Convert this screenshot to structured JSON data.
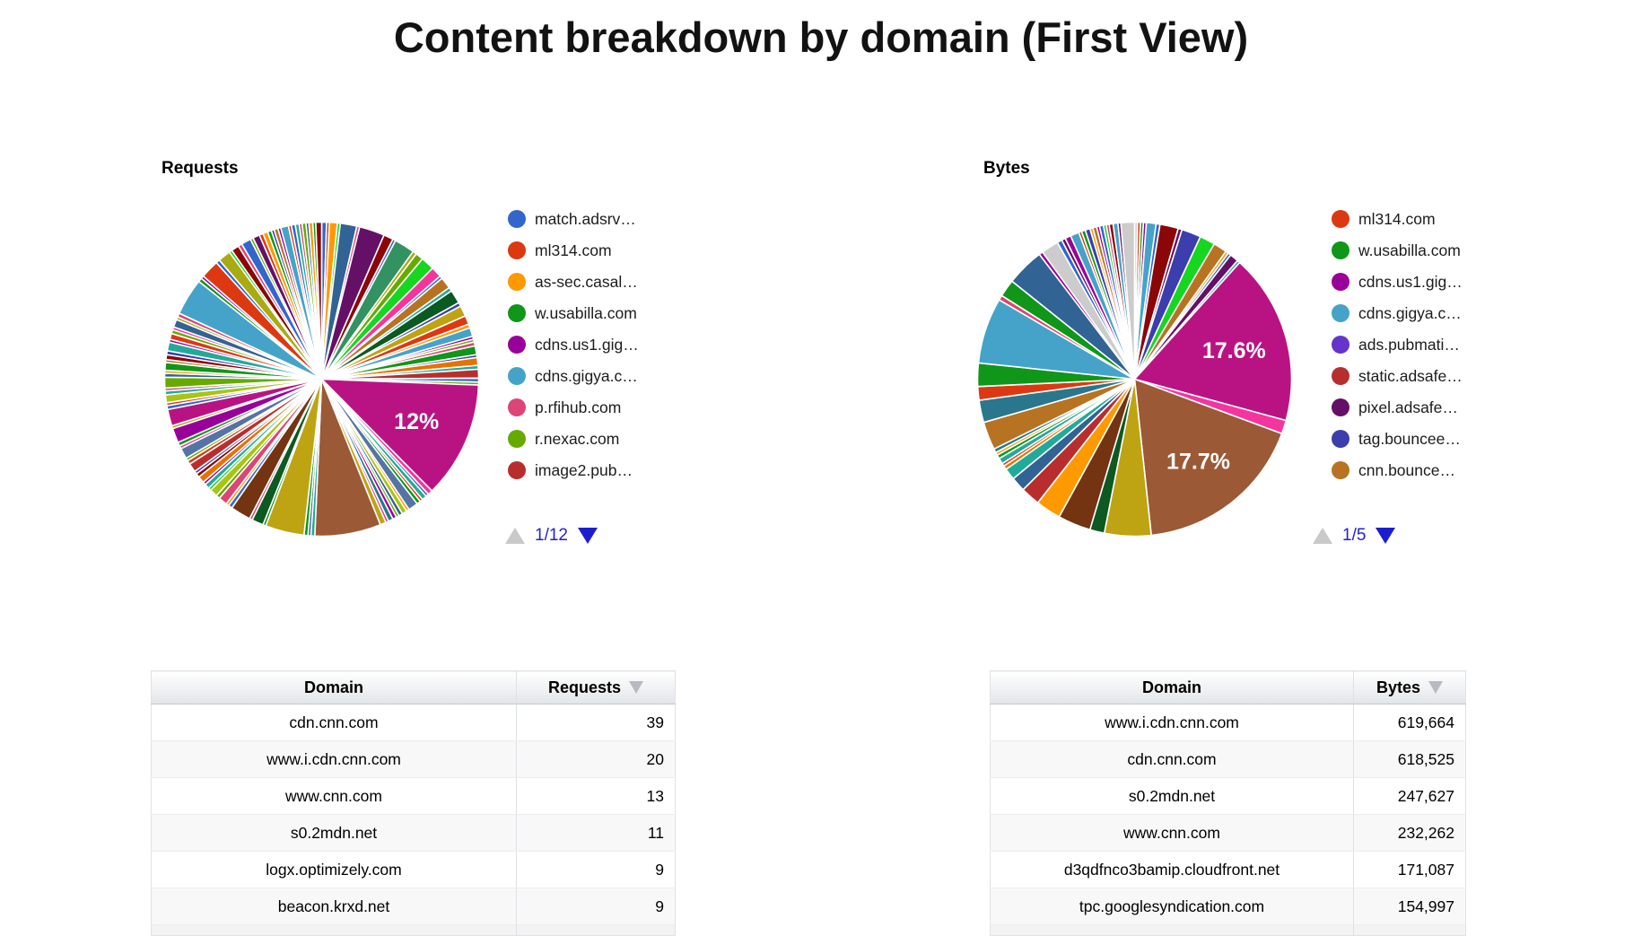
{
  "page": {
    "title": "Content breakdown by domain (First View)"
  },
  "chart_data": [
    {
      "type": "pie",
      "title": "Requests",
      "pager": "1/12",
      "labeled_slices": [
        {
          "label": "12%",
          "value_pct": 12
        }
      ],
      "legend": [
        {
          "label": "match.adsrv…",
          "color": "#3366CC"
        },
        {
          "label": "ml314.com",
          "color": "#DC3912"
        },
        {
          "label": "as-sec.casal…",
          "color": "#FF9900"
        },
        {
          "label": "w.usabilla.com",
          "color": "#109618"
        },
        {
          "label": "cdns.us1.gig…",
          "color": "#990099"
        },
        {
          "label": "cdns.gigya.c…",
          "color": "#45A3C9"
        },
        {
          "label": "p.rfihub.com",
          "color": "#DD4477"
        },
        {
          "label": "r.nexac.com",
          "color": "#66AA00"
        },
        {
          "label": "image2.pub…",
          "color": "#B82E2E"
        }
      ],
      "slices": [
        [
          "#3366CC",
          0.5
        ],
        [
          "#DC3912",
          0.3
        ],
        [
          "#FF9900",
          0.8
        ],
        [
          "#16D620",
          0.3
        ],
        [
          "#316395",
          1.7
        ],
        [
          "#DD4477",
          0.3
        ],
        [
          "#651067",
          2.6
        ],
        [
          "#8B0707",
          1.0
        ],
        [
          "#3366CC",
          0.3
        ],
        [
          "#329262",
          2.1
        ],
        [
          "#AAAA11",
          0.4
        ],
        [
          "#66AA00",
          0.8
        ],
        [
          "#16D620",
          1.4
        ],
        [
          "#F4359E",
          1.1
        ],
        [
          "#3366CC",
          0.3
        ],
        [
          "#B77322",
          1.2
        ],
        [
          "#22AA99",
          0.4
        ],
        [
          "#0C5922",
          1.4
        ],
        [
          "#3B3EAC",
          0.4
        ],
        [
          "#BEA413",
          1.1
        ],
        [
          "#DC3912",
          0.9
        ],
        [
          "#FF9900",
          0.4
        ],
        [
          "#45A3C9",
          0.9
        ],
        [
          "#990099",
          0.3
        ],
        [
          "#66AA00",
          0.3
        ],
        [
          "#DD4477",
          0.4
        ],
        [
          "#109618",
          0.9
        ],
        [
          "#3B3EAC",
          0.3
        ],
        [
          "#E67300",
          0.8
        ],
        [
          "#22AA99",
          0.4
        ],
        [
          "#B82E2E",
          0.9
        ],
        [
          "#3366CC",
          0.4
        ],
        [
          "#66AA00",
          0.3
        ],
        [
          "#B91383",
          12,
          "12%"
        ],
        [
          "#F4359E",
          0.5
        ],
        [
          "#3366CC",
          0.3
        ],
        [
          "#22AA99",
          0.5
        ],
        [
          "#DC3912",
          0.3
        ],
        [
          "#109618",
          0.4
        ],
        [
          "#5574A6",
          1.0
        ],
        [
          "#FF9900",
          0.3
        ],
        [
          "#A9C413",
          0.5
        ],
        [
          "#316395",
          0.4
        ],
        [
          "#66AA00",
          0.3
        ],
        [
          "#990099",
          0.4
        ],
        [
          "#2A778D",
          0.5
        ],
        [
          "#DD4477",
          0.3
        ],
        [
          "#BEA413",
          0.6
        ],
        [
          "#9C5935",
          6.8
        ],
        [
          "#22AA99",
          0.4
        ],
        [
          "#316395",
          0.3
        ],
        [
          "#109618",
          0.4
        ],
        [
          "#BEA413",
          4.0
        ],
        [
          "#109618",
          0.3
        ],
        [
          "#0C5922",
          1.2
        ],
        [
          "#DD4477",
          0.3
        ],
        [
          "#743411",
          2.1
        ],
        [
          "#3366CC",
          0.4
        ],
        [
          "#FF9900",
          0.3
        ],
        [
          "#DD4477",
          0.9
        ],
        [
          "#66AA00",
          0.4
        ],
        [
          "#A9C413",
          0.8
        ],
        [
          "#16D620",
          0.3
        ],
        [
          "#22AA99",
          0.5
        ],
        [
          "#990099",
          0.3
        ],
        [
          "#E67300",
          0.7
        ],
        [
          "#8B0707",
          0.4
        ],
        [
          "#3B3EAC",
          0.3
        ],
        [
          "#B82E2E",
          0.9
        ],
        [
          "#DC3912",
          0.4
        ],
        [
          "#66AA00",
          0.3
        ],
        [
          "#5574A6",
          1.1
        ],
        [
          "#F4359E",
          0.3
        ],
        [
          "#109618",
          0.4
        ],
        [
          "#990099",
          1.5
        ],
        [
          "#AAAA11",
          0.3
        ],
        [
          "#B91383",
          1.7
        ],
        [
          "#3366CC",
          0.4
        ],
        [
          "#DC3912",
          0.3
        ],
        [
          "#A9C413",
          0.8
        ],
        [
          "#22AA99",
          0.4
        ],
        [
          "#DD4477",
          0.3
        ],
        [
          "#66AA00",
          1.1
        ],
        [
          "#316395",
          0.4
        ],
        [
          "#FF9900",
          0.3
        ],
        [
          "#109618",
          0.8
        ],
        [
          "#B77322",
          0.3
        ],
        [
          "#8B0707",
          0.5
        ],
        [
          "#3B3EAC",
          0.4
        ],
        [
          "#22AA99",
          0.9
        ],
        [
          "#990099",
          0.3
        ],
        [
          "#DC3912",
          0.6
        ],
        [
          "#66AA00",
          0.4
        ],
        [
          "#F4359E",
          0.3
        ],
        [
          "#316395",
          0.8
        ],
        [
          "#AAAA11",
          0.3
        ],
        [
          "#DD4477",
          0.4
        ],
        [
          "#45A3C9",
          3.8
        ],
        [
          "#109618",
          0.4
        ],
        [
          "#990099",
          0.3
        ],
        [
          "#DC3912",
          1.9
        ],
        [
          "#3366CC",
          0.4
        ],
        [
          "#AAAA11",
          1.3
        ],
        [
          "#16D620",
          0.3
        ],
        [
          "#8B0707",
          0.8
        ],
        [
          "#DD4477",
          0.4
        ],
        [
          "#3366CC",
          1.0
        ],
        [
          "#66AA00",
          0.3
        ],
        [
          "#651067",
          0.7
        ],
        [
          "#DC3912",
          0.4
        ],
        [
          "#FF9900",
          0.5
        ],
        [
          "#109618",
          0.4
        ],
        [
          "#3B3EAC",
          0.3
        ],
        [
          "#B77322",
          0.4
        ],
        [
          "#990099",
          0.3
        ],
        [
          "#45A3C9",
          0.8
        ],
        [
          "#DC3912",
          0.3
        ],
        [
          "#3366CC",
          0.4
        ],
        [
          "#22AA99",
          0.4
        ],
        [
          "#DD4477",
          0.3
        ],
        [
          "#66AA00",
          0.4
        ],
        [
          "#316395",
          0.3
        ],
        [
          "#FF9900",
          0.4
        ],
        [
          "#109618",
          0.3
        ],
        [
          "#8B0707",
          0.6
        ]
      ]
    },
    {
      "type": "pie",
      "title": "Bytes",
      "pager": "1/5",
      "labeled_slices": [
        {
          "label": "17.6%",
          "value_pct": 17.6
        },
        {
          "label": "17.7%",
          "value_pct": 17.7
        }
      ],
      "legend": [
        {
          "label": "ml314.com",
          "color": "#DC3912"
        },
        {
          "label": "w.usabilla.com",
          "color": "#109618"
        },
        {
          "label": "cdns.us1.gig…",
          "color": "#990099"
        },
        {
          "label": "cdns.gigya.c…",
          "color": "#45A3C9"
        },
        {
          "label": "ads.pubmati…",
          "color": "#6633CC"
        },
        {
          "label": "static.adsafe…",
          "color": "#B82E2E"
        },
        {
          "label": "pixel.adsafe…",
          "color": "#651067"
        },
        {
          "label": "tag.bouncee…",
          "color": "#3B3EAC"
        },
        {
          "label": "cnn.bounce…",
          "color": "#B77322"
        }
      ],
      "slices": [
        [
          "#CCCCCC",
          0.3
        ],
        [
          "#DC3912",
          0.3
        ],
        [
          "#109618",
          0.3
        ],
        [
          "#990099",
          0.3
        ],
        [
          "#45A3C9",
          1.0
        ],
        [
          "#3366CC",
          0.4
        ],
        [
          "#8B0707",
          1.9
        ],
        [
          "#651067",
          0.4
        ],
        [
          "#3B3EAC",
          2.0
        ],
        [
          "#16D620",
          1.6
        ],
        [
          "#B77322",
          1.4
        ],
        [
          "#FF9900",
          0.3
        ],
        [
          "#3366CC",
          0.3
        ],
        [
          "#651067",
          0.9
        ],
        [
          "#45A3C9",
          0.3
        ],
        [
          "#B91383",
          17.6,
          "17.6%"
        ],
        [
          "#F4359E",
          1.4
        ],
        [
          "#9C5935",
          17.7,
          "17.7%"
        ],
        [
          "#BEA413",
          4.8
        ],
        [
          "#0C5922",
          1.5
        ],
        [
          "#743411",
          3.4
        ],
        [
          "#FF9900",
          2.6
        ],
        [
          "#B82E2E",
          2.0
        ],
        [
          "#316395",
          1.5
        ],
        [
          "#22AA99",
          1.2
        ],
        [
          "#E67300",
          0.4
        ],
        [
          "#DC3912",
          0.3
        ],
        [
          "#22AA99",
          0.6
        ],
        [
          "#109618",
          0.4
        ],
        [
          "#FF9900",
          0.3
        ],
        [
          "#2A778D",
          0.4
        ],
        [
          "#B77322",
          2.9
        ],
        [
          "#2A778D",
          2.3
        ],
        [
          "#DC3912",
          1.4
        ],
        [
          "#109618",
          2.4
        ],
        [
          "#45A3C9",
          6.8
        ],
        [
          "#DD4477",
          0.5
        ],
        [
          "#109618",
          1.8
        ],
        [
          "#316395",
          3.9
        ],
        [
          "#990099",
          0.4
        ],
        [
          "#CCCCCC",
          1.8
        ],
        [
          "#3366CC",
          0.5
        ],
        [
          "#651067",
          0.4
        ],
        [
          "#990099",
          0.6
        ],
        [
          "#45A3C9",
          0.9
        ],
        [
          "#DC3912",
          0.3
        ],
        [
          "#109618",
          0.4
        ],
        [
          "#3B3EAC",
          0.5
        ],
        [
          "#FF9900",
          0.3
        ],
        [
          "#B77322",
          0.4
        ],
        [
          "#990099",
          0.3
        ],
        [
          "#3366CC",
          0.4
        ],
        [
          "#16D620",
          0.3
        ],
        [
          "#DD4477",
          0.3
        ],
        [
          "#8B0707",
          0.4
        ],
        [
          "#45A3C9",
          0.5
        ],
        [
          "#651067",
          0.3
        ],
        [
          "#CCCCCC",
          1.4
        ]
      ]
    }
  ],
  "tables": {
    "left": {
      "headers": [
        "Domain",
        "Requests"
      ],
      "rows": [
        [
          "cdn.cnn.com",
          "39"
        ],
        [
          "www.i.cdn.cnn.com",
          "20"
        ],
        [
          "www.cnn.com",
          "13"
        ],
        [
          "s0.2mdn.net",
          "11"
        ],
        [
          "logx.optimizely.com",
          "9"
        ],
        [
          "beacon.krxd.net",
          "9"
        ]
      ]
    },
    "right": {
      "headers": [
        "Domain",
        "Bytes"
      ],
      "rows": [
        [
          "www.i.cdn.cnn.com",
          "619,664"
        ],
        [
          "cdn.cnn.com",
          "618,525"
        ],
        [
          "s0.2mdn.net",
          "247,627"
        ],
        [
          "www.cnn.com",
          "232,262"
        ],
        [
          "d3qdfnco3bamip.cloudfront.net",
          "171,087"
        ],
        [
          "tpc.googlesyndication.com",
          "154,997"
        ]
      ]
    }
  },
  "colors": {
    "pager_active": "#1d1dd0",
    "pager_inactive": "#c9c9c9",
    "pie_label_text": "#ffffff"
  }
}
